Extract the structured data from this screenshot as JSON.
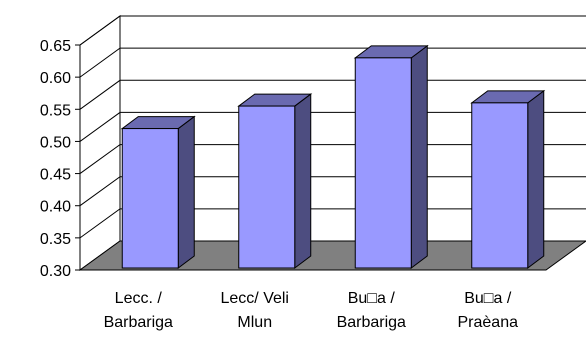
{
  "chart_data": {
    "type": "bar",
    "categories": [
      [
        "Lecc. /",
        "Barbariga"
      ],
      [
        "Lecc/  Veli",
        "Mlun"
      ],
      [
        "Bu□a /",
        "Barbariga"
      ],
      [
        "Bu□a /",
        "Praèana"
      ]
    ],
    "values": [
      0.52,
      0.555,
      0.63,
      0.56
    ],
    "ylim": [
      0.3,
      0.65
    ],
    "yticks": [
      "0.30",
      "0.35",
      "0.40",
      "0.45",
      "0.50",
      "0.55",
      "0.60",
      "0.65"
    ],
    "grid": true,
    "legend": "none",
    "colors": {
      "bar_front": "#9999ff",
      "bar_side": "#4d4d80",
      "bar_top": "#6a6ab0",
      "floor": "#808080",
      "grid": "#000000"
    }
  }
}
